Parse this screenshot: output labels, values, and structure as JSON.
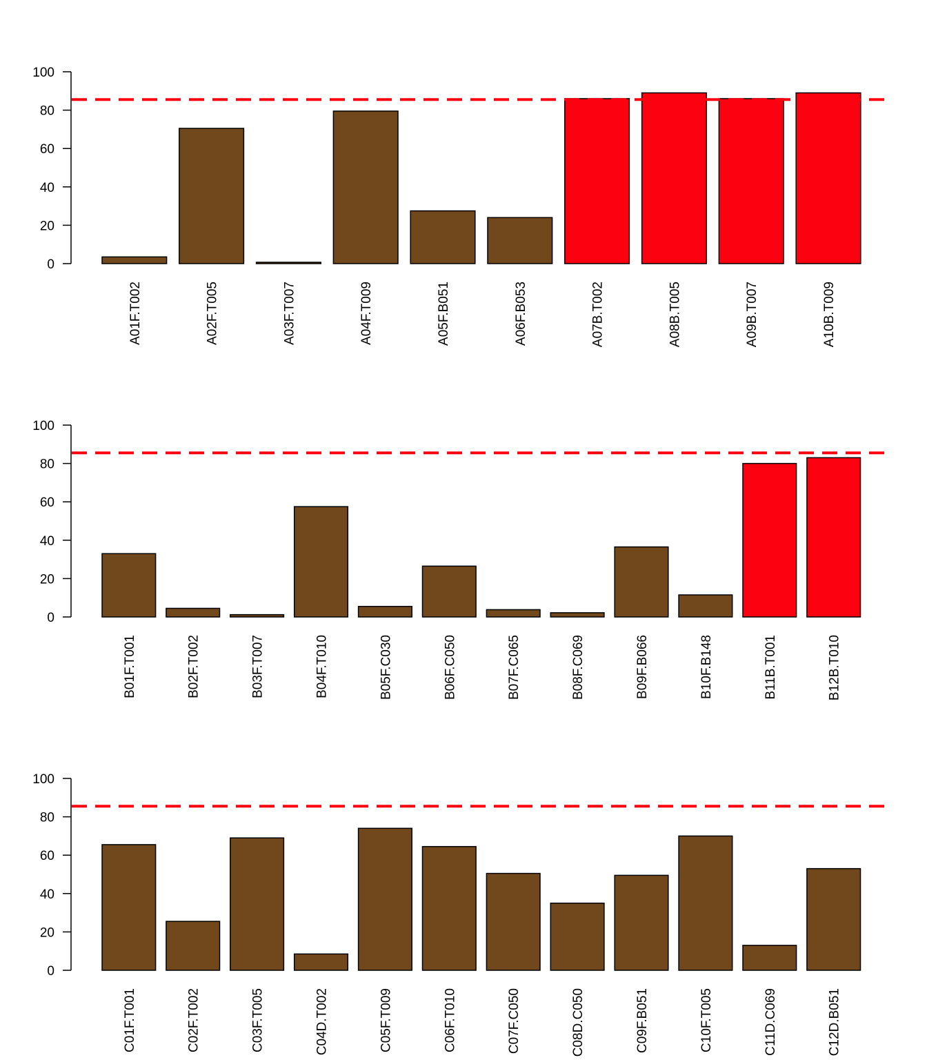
{
  "chart_data": [
    {
      "type": "bar",
      "categories": [
        "A01F.T002",
        "A02F.T005",
        "A03F.T007",
        "A04F.T009",
        "A05F.B051",
        "A06F.B053",
        "A07B.T002",
        "A08B.T005",
        "A09B.T007",
        "A10B.T009"
      ],
      "values": [
        3.5,
        70.5,
        0.7,
        79.5,
        27.5,
        24,
        86,
        89,
        86,
        89
      ],
      "highlighted": [
        false,
        false,
        false,
        false,
        false,
        false,
        true,
        true,
        true,
        true
      ],
      "ylim": [
        0,
        100
      ],
      "yticks": [
        0,
        20,
        40,
        60,
        80,
        100
      ],
      "threshold": 85.5,
      "colors": {
        "bar": "#71471c",
        "highlight": "#fc0110",
        "threshold": "#fc0110"
      }
    },
    {
      "type": "bar",
      "categories": [
        "B01F.T001",
        "B02F.T002",
        "B03F.T007",
        "B04F.T010",
        "B05F.C030",
        "B06F.C050",
        "B07F.C065",
        "B08F.C069",
        "B09F.B066",
        "B10F.B148",
        "B11B.T001",
        "B12B.T010"
      ],
      "values": [
        33,
        4.5,
        1.2,
        57.5,
        5.5,
        26.5,
        3.8,
        2.2,
        36.5,
        11.5,
        80,
        83
      ],
      "highlighted": [
        false,
        false,
        false,
        false,
        false,
        false,
        false,
        false,
        false,
        false,
        true,
        true
      ],
      "ylim": [
        0,
        100
      ],
      "yticks": [
        0,
        20,
        40,
        60,
        80,
        100
      ],
      "threshold": 85.5,
      "colors": {
        "bar": "#71471c",
        "highlight": "#fc0110",
        "threshold": "#fc0110"
      }
    },
    {
      "type": "bar",
      "categories": [
        "C01F.T001",
        "C02F.T002",
        "C03F.T005",
        "C04D.T002",
        "C05F.T009",
        "C06F.T010",
        "C07F.C050",
        "C08D.C050",
        "C09F.B051",
        "C10F.T005",
        "C11D.C069",
        "C12D.B051"
      ],
      "values": [
        65.5,
        25.5,
        69,
        8.5,
        74,
        64.5,
        50.5,
        35,
        49.5,
        70,
        13,
        53
      ],
      "highlighted": [
        false,
        false,
        false,
        false,
        false,
        false,
        false,
        false,
        false,
        false,
        false,
        false
      ],
      "ylim": [
        0,
        100
      ],
      "yticks": [
        0,
        20,
        40,
        60,
        80,
        100
      ],
      "threshold": 85.5,
      "colors": {
        "bar": "#71471c",
        "highlight": "#fc0110",
        "threshold": "#fc0110"
      }
    }
  ]
}
